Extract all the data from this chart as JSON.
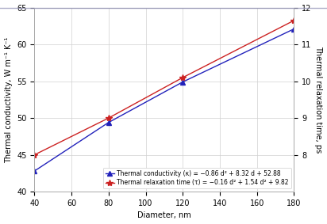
{
  "x": [
    40,
    80,
    120,
    180
  ],
  "kappa": [
    42.8,
    49.4,
    54.9,
    62.1
  ],
  "tau": [
    8.0,
    9.0,
    10.1,
    11.65
  ],
  "kappa_ylim": [
    40,
    65
  ],
  "tau_ylim": [
    7,
    12
  ],
  "kappa_yticks": [
    40,
    45,
    50,
    55,
    60,
    65
  ],
  "tau_yticks": [
    8,
    9,
    10,
    11,
    12
  ],
  "xlim": [
    40,
    180
  ],
  "xticks": [
    40,
    60,
    80,
    100,
    120,
    140,
    160,
    180
  ],
  "xlabel": "Diameter, nm",
  "ylabel_left": "Thermal conductivity, W m⁻¹ K⁻¹",
  "ylabel_right": "Thermal relaxation time, ps",
  "legend_kappa": "Thermal conductivity (κ) = −0.86 d² + 8.32 d + 52.88",
  "legend_tau": "Thermal relaxation time (τ) = −0.16 d² + 1.54 d² + 9.82",
  "color_kappa": "#2222bb",
  "color_tau": "#cc2222",
  "bg_color": "#ffffff",
  "grid_color": "#d0d0d0",
  "top_line_color": "#9999bb",
  "marker_kappa": "^",
  "marker_tau": "*",
  "legend_fontsize": 5.5,
  "axis_fontsize": 7,
  "tick_fontsize": 7
}
